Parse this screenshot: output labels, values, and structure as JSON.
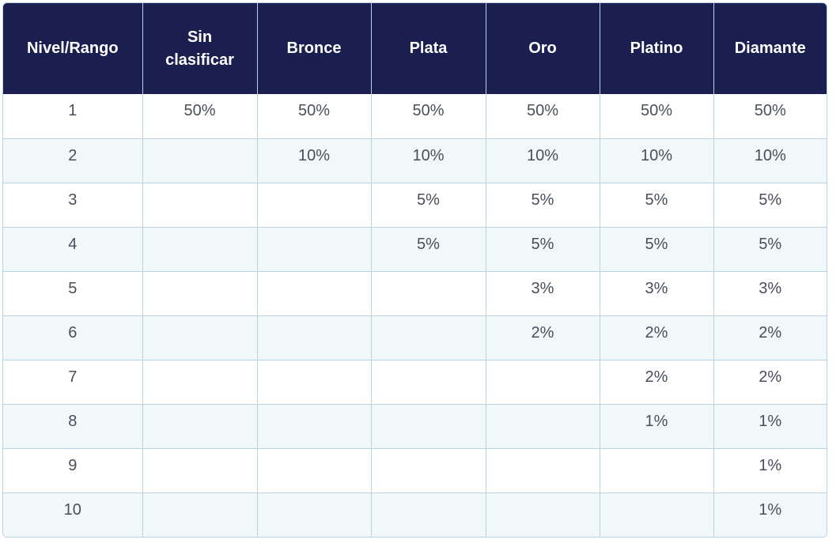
{
  "table": {
    "headers": [
      "Nivel/Rango",
      "Sin clasificar",
      "Bronce",
      "Plata",
      "Oro",
      "Platino",
      "Diamante"
    ],
    "rows": [
      [
        "1",
        "50%",
        "50%",
        "50%",
        "50%",
        "50%",
        "50%"
      ],
      [
        "2",
        "",
        "10%",
        "10%",
        "10%",
        "10%",
        "10%"
      ],
      [
        "3",
        "",
        "",
        "5%",
        "5%",
        "5%",
        "5%"
      ],
      [
        "4",
        "",
        "",
        "5%",
        "5%",
        "5%",
        "5%"
      ],
      [
        "5",
        "",
        "",
        "",
        "3%",
        "3%",
        "3%"
      ],
      [
        "6",
        "",
        "",
        "",
        "2%",
        "2%",
        "2%"
      ],
      [
        "7",
        "",
        "",
        "",
        "",
        "2%",
        "2%"
      ],
      [
        "8",
        "",
        "",
        "",
        "",
        "1%",
        "1%"
      ],
      [
        "9",
        "",
        "",
        "",
        "",
        "",
        "1%"
      ],
      [
        "10",
        "",
        "",
        "",
        "",
        "",
        "1%"
      ]
    ]
  },
  "colors": {
    "header_bg": "#1a1f4f",
    "header_text": "#ffffff",
    "alt_row_bg": "#f1f8fa",
    "border": "#b9d3df",
    "cell_text": "#4a4e5a"
  }
}
